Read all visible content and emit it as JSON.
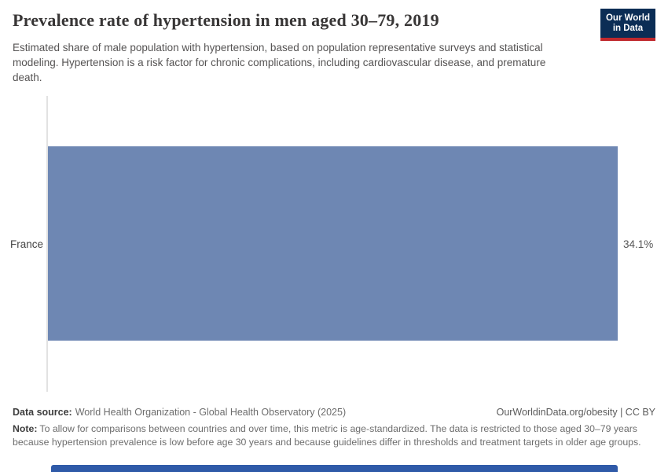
{
  "header": {
    "title": "Prevalence rate of hypertension in men aged 30–79, 2019",
    "subtitle": "Estimated share of male population with hypertension, based on population representative surveys and statistical modeling. Hypertension is a risk factor for chronic complications, including cardiovascular disease, and premature death.",
    "logo": {
      "line1": "Our World",
      "line2": "in Data",
      "bg_color": "#0b2d55",
      "accent_color": "#c0282d"
    }
  },
  "chart_data": {
    "type": "bar",
    "orientation": "horizontal",
    "title": "Prevalence rate of hypertension in men aged 30–79, 2019",
    "categories": [
      "France"
    ],
    "values": [
      34.1
    ],
    "value_labels": [
      "34.1%"
    ],
    "xlabel": "",
    "ylabel": "",
    "xlim": [
      0,
      34.1
    ],
    "grid": false,
    "legend": false,
    "bar_color": "#6e87b3",
    "axis_color": "#e2e2e2"
  },
  "footer": {
    "data_source_label": "Data source:",
    "data_source_value": "World Health Organization - Global Health Observatory (2025)",
    "attribution": "OurWorldinData.org/obesity | CC BY",
    "note_label": "Note:",
    "note_text": "To allow for comparisons between countries and over time, this metric is age-standardized. The data is restricted to those aged 30–79 years because hypertension prevalence is low before age 30 years and because guidelines differ in thresholds and treatment targets in older age groups."
  }
}
